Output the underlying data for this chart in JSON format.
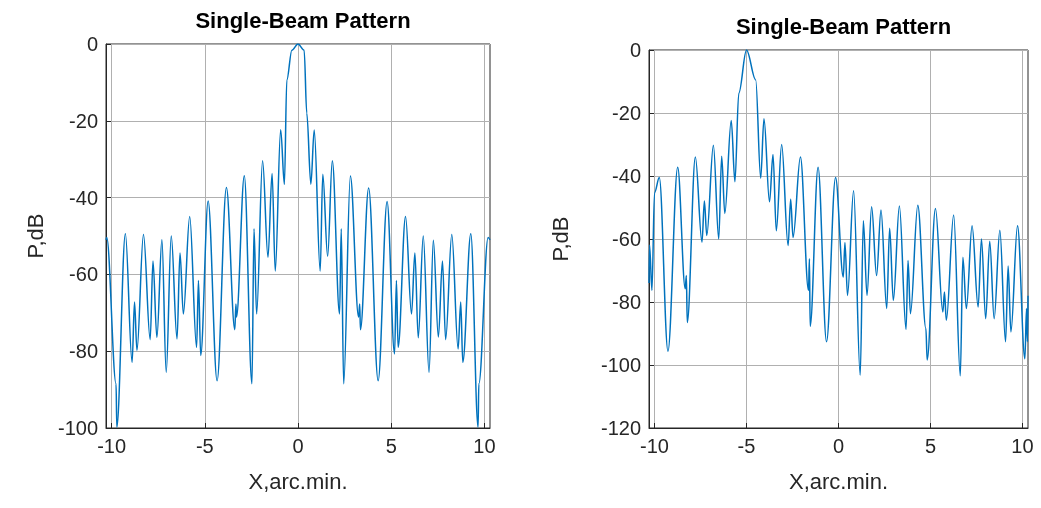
{
  "chart_data": [
    {
      "type": "line",
      "title": "Single-Beam Pattern",
      "xlabel": "X,arc.min.",
      "ylabel": "P,dB",
      "color": "#0072bd",
      "marker": "none",
      "line_style": "solid",
      "grid": true,
      "xlim": [
        -10.3,
        10.3
      ],
      "xticks": [
        -10,
        -5,
        0,
        5,
        10
      ],
      "ylim": [
        -100,
        0
      ],
      "yticks": [
        -100,
        -80,
        -60,
        -40,
        -20,
        0
      ],
      "x": [
        -10.3,
        -10.26,
        -9.76,
        -9.72,
        -9.26,
        -8.9,
        -8.77,
        -8.64,
        -8.29,
        -7.93,
        -7.78,
        -7.57,
        -7.3,
        -7.07,
        -6.8,
        -6.49,
        -6.33,
        -6.15,
        -5.81,
        -5.44,
        -5.34,
        -5.22,
        -4.82,
        -4.34,
        -3.84,
        -3.39,
        -3.33,
        -3.3,
        -2.88,
        -2.47,
        -2.36,
        -2.22,
        -1.9,
        -1.61,
        -1.39,
        -1.22,
        -0.93,
        -0.73,
        -0.6,
        -0.33,
        0,
        0.33,
        0.47,
        0.69,
        0.87,
        1.19,
        1.33,
        1.59,
        1.84,
        2.23,
        2.32,
        2.45,
        2.81,
        3.25,
        3.31,
        3.35,
        3.79,
        4.3,
        4.78,
        5.18,
        5.28,
        5.37,
        5.77,
        6.09,
        6.27,
        6.45,
        6.72,
        7.03,
        7.26,
        7.53,
        7.75,
        7.92,
        8.25,
        8.59,
        8.73,
        8.84,
        9.27,
        9.66,
        9.7,
        10.2,
        10.3
      ],
      "values": [
        -51,
        -50.4,
        -88.5,
        -99.8,
        -49.4,
        -82.9,
        -67.2,
        -79.8,
        -49.6,
        -77,
        -56.5,
        -76.4,
        -51,
        -85.5,
        -50,
        -76.8,
        -54.4,
        -70.3,
        -44.9,
        -79,
        -61.6,
        -81.1,
        -40.9,
        -87.7,
        -37.4,
        -74.4,
        -67.7,
        -71.1,
        -34.3,
        -88.5,
        -48.1,
        -70.3,
        -30.4,
        -55.5,
        -33.7,
        -59.1,
        -22.3,
        -36.6,
        -9.4,
        -1.6,
        0,
        -1.6,
        -18,
        -36.5,
        -22.4,
        -59.1,
        -33.9,
        -55.3,
        -30.4,
        -70.3,
        -48.1,
        -88.5,
        -34.4,
        -71.1,
        -67.7,
        -74.4,
        -37.5,
        -87.7,
        -41,
        -80.7,
        -61.6,
        -79,
        -44.9,
        -70.3,
        -54.4,
        -76.5,
        -50,
        -85.5,
        -51.1,
        -76.3,
        -56.5,
        -77,
        -49.6,
        -79.4,
        -67.2,
        -82.9,
        -49.4,
        -99.8,
        -88.5,
        -50.4,
        -51
      ]
    },
    {
      "type": "line",
      "title": "Single-Beam Pattern",
      "xlabel": "X,arc.min.",
      "ylabel": "P,dB",
      "color": "#0072bd",
      "marker": "none",
      "line_style": "solid",
      "grid": true,
      "xlim": [
        -10.3,
        10.3
      ],
      "xticks": [
        -10,
        -5,
        0,
        5,
        10
      ],
      "ylim": [
        -120,
        0
      ],
      "yticks": [
        -120,
        -100,
        -80,
        -60,
        -40,
        -20,
        0
      ],
      "x": [
        -10.3,
        -10.27,
        -10.14,
        -10,
        -9.74,
        -9.27,
        -8.74,
        -8.33,
        -8.27,
        -8.22,
        -7.78,
        -7.42,
        -7.29,
        -7.16,
        -6.8,
        -6.51,
        -6.35,
        -6.18,
        -5.83,
        -5.63,
        -5.42,
        -5,
        -4.5,
        -4.23,
        -4.05,
        -3.75,
        -3.56,
        -3.38,
        -3.09,
        -2.74,
        -2.6,
        -2.47,
        -2.07,
        -1.63,
        -1.58,
        -1.54,
        -1.11,
        -0.65,
        -0.16,
        0.26,
        0.35,
        0.49,
        0.82,
        1.18,
        1.35,
        1.55,
        1.8,
        2.07,
        2.31,
        2.62,
        2.78,
        2.98,
        3.31,
        3.67,
        3.78,
        3.91,
        4.31,
        4.75,
        4.82,
        5.27,
        5.67,
        5.76,
        5.86,
        6.26,
        6.62,
        6.76,
        6.95,
        7.26,
        7.59,
        7.77,
        8,
        8.22,
        8.46,
        8.77,
        9.08,
        9.22,
        9.37,
        9.73,
        10.13,
        10.22,
        10.27,
        10.3
      ],
      "values": [
        -74,
        -61.9,
        -76.3,
        -45.3,
        -40.5,
        -95.6,
        -37.2,
        -75.8,
        -71.6,
        -86.5,
        -34,
        -61,
        -47.9,
        -58.9,
        -30.2,
        -60,
        -33.7,
        -51.9,
        -22.4,
        -41.8,
        -13.7,
        0,
        -9.5,
        -40.7,
        -21.8,
        -48.2,
        -33.2,
        -57.4,
        -30,
        -62.1,
        -47.4,
        -59.5,
        -34,
        -76.3,
        -66.3,
        -87.7,
        -37.2,
        -92.6,
        -40.5,
        -72.1,
        -61.1,
        -77.9,
        -44.7,
        -103.2,
        -54.2,
        -77.9,
        -49.8,
        -71.6,
        -50.8,
        -82.1,
        -56.6,
        -79.5,
        -49.5,
        -88.7,
        -66.8,
        -83.7,
        -49.3,
        -88.4,
        -98.4,
        -50.3,
        -83.2,
        -76.8,
        -85.8,
        -52.4,
        -103.4,
        -65.8,
        -82.1,
        -55.8,
        -81.6,
        -60,
        -85.3,
        -60.7,
        -85.3,
        -57.2,
        -92.6,
        -68.6,
        -89.5,
        -55.8,
        -98,
        -82.1,
        -92.6,
        -78
      ]
    }
  ]
}
